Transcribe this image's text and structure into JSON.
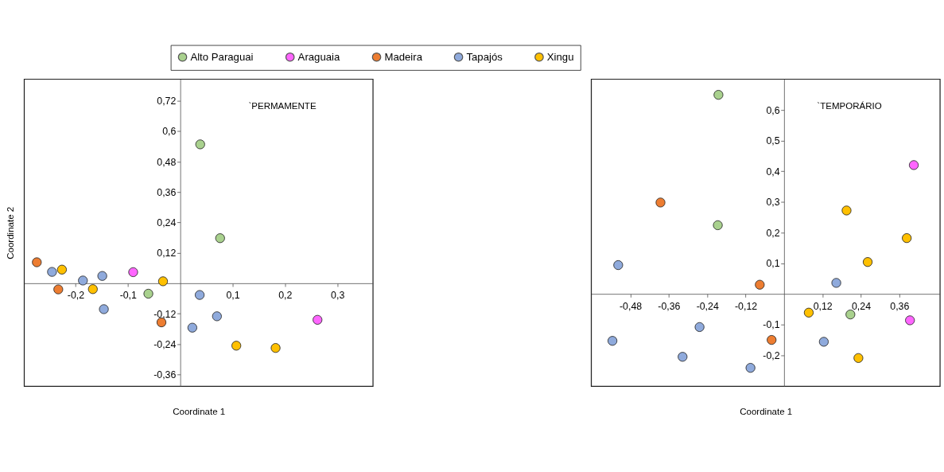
{
  "chart_data": [
    {
      "type": "scatter",
      "xlabel": "Coordinate 1",
      "ylabel": "Coordinate 2",
      "annotations": [
        "`PERMAMENTE"
      ],
      "legend": "top",
      "marker": "circle",
      "xlim": [
        -0.298,
        0.368
      ],
      "ylim": [
        -0.406,
        0.805
      ],
      "xticks": [
        {
          "value": -0.2,
          "label": "-0,2"
        },
        {
          "value": -0.1,
          "label": "-0,1"
        },
        {
          "value": 0.1,
          "label": "0,1"
        },
        {
          "value": 0.2,
          "label": "0,2"
        },
        {
          "value": 0.3,
          "label": "0,3"
        }
      ],
      "yticks": [
        {
          "value": 0.72,
          "label": "0,72"
        },
        {
          "value": 0.6,
          "label": "0,6"
        },
        {
          "value": 0.48,
          "label": "0,48"
        },
        {
          "value": 0.36,
          "label": "0,36"
        },
        {
          "value": 0.24,
          "label": "0,24"
        },
        {
          "value": 0.12,
          "label": "0,12"
        },
        {
          "value": -0.12,
          "label": "-0,12"
        },
        {
          "value": -0.24,
          "label": "-0,24"
        },
        {
          "value": -0.36,
          "label": "-0,36"
        }
      ],
      "series": [
        {
          "name": "Alto Paraguai",
          "color": "#a9d18e",
          "x": [
            0.038,
            0.076,
            -0.061
          ],
          "values": [
            0.548,
            0.178,
            -0.041
          ]
        },
        {
          "name": "Araguaia",
          "color": "#ff66ff",
          "x": [
            -0.09,
            0.262
          ],
          "values": [
            0.044,
            -0.144
          ]
        },
        {
          "name": "Madeira",
          "color": "#ed7d31",
          "x": [
            -0.274,
            -0.233,
            -0.036
          ],
          "values": [
            0.083,
            -0.024,
            -0.154
          ]
        },
        {
          "name": "Tapajós",
          "color": "#8faadc",
          "x": [
            -0.245,
            -0.186,
            -0.149,
            -0.146,
            0.037,
            0.07,
            0.023
          ],
          "values": [
            0.045,
            0.011,
            0.029,
            -0.102,
            -0.046,
            -0.13,
            -0.175
          ]
        },
        {
          "name": "Xingu",
          "color": "#ffc000",
          "x": [
            -0.226,
            -0.167,
            -0.033,
            0.107,
            0.182
          ],
          "values": [
            0.054,
            -0.023,
            0.008,
            -0.246,
            -0.255
          ]
        }
      ]
    },
    {
      "type": "scatter",
      "xlabel": "Coordinate 1",
      "annotations": [
        "`TEMPORÁRIO"
      ],
      "marker": "circle",
      "xlim": [
        -0.602,
        0.487
      ],
      "ylim": [
        -0.301,
        0.7
      ],
      "xticks": [
        {
          "value": -0.48,
          "label": "-0,48"
        },
        {
          "value": -0.36,
          "label": "-0,36"
        },
        {
          "value": -0.24,
          "label": "-0,24"
        },
        {
          "value": -0.12,
          "label": "-0,12"
        },
        {
          "value": 0.12,
          "label": "0,12"
        },
        {
          "value": 0.24,
          "label": "0,24"
        },
        {
          "value": 0.36,
          "label": "0,36"
        }
      ],
      "yticks": [
        {
          "value": 0.6,
          "label": "0,6"
        },
        {
          "value": 0.5,
          "label": "0,5"
        },
        {
          "value": 0.4,
          "label": "0,4"
        },
        {
          "value": 0.3,
          "label": "0,3"
        },
        {
          "value": 0.2,
          "label": "0,2"
        },
        {
          "value": 0.1,
          "label": "0,1"
        },
        {
          "value": -0.1,
          "label": "-0,1"
        },
        {
          "value": -0.2,
          "label": "-0,2"
        }
      ],
      "series": [
        {
          "color": "#a9d18e",
          "x": [
            -0.205,
            -0.207,
            0.207
          ],
          "values": [
            0.649,
            0.224,
            -0.067
          ]
        },
        {
          "color": "#ff66ff",
          "x": [
            0.405,
            0.393
          ],
          "values": [
            0.42,
            -0.086
          ]
        },
        {
          "color": "#ed7d31",
          "x": [
            -0.386,
            -0.076,
            -0.039
          ],
          "values": [
            0.298,
            0.03,
            -0.15
          ]
        },
        {
          "color": "#8faadc",
          "x": [
            -0.518,
            -0.536,
            -0.264,
            -0.317,
            -0.105,
            0.163,
            0.124
          ],
          "values": [
            0.094,
            -0.153,
            -0.108,
            -0.205,
            -0.241,
            0.036,
            -0.156
          ]
        },
        {
          "color": "#ffc000",
          "x": [
            0.195,
            0.383,
            0.261,
            0.077,
            0.232
          ],
          "values": [
            0.272,
            0.182,
            0.104,
            -0.061,
            -0.209
          ]
        }
      ]
    }
  ]
}
